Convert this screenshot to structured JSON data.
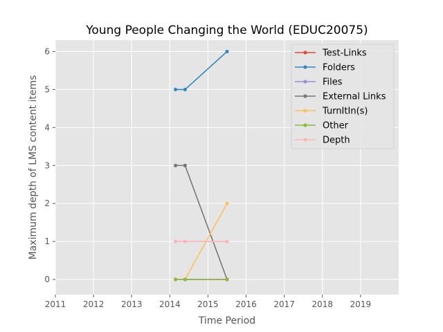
{
  "chart_data": {
    "type": "line",
    "title": "Young People Changing the World (EDUC20075)",
    "xlabel": "Time Period",
    "ylabel": "Maximum depth of LMS content items",
    "xlim": [
      2011,
      2020
    ],
    "ylim": [
      -0.4,
      6.3
    ],
    "xticks": [
      "2011",
      "2012",
      "2013",
      "2014",
      "2015",
      "2016",
      "2017",
      "2018",
      "2019"
    ],
    "yticks": [
      "0",
      "1",
      "2",
      "3",
      "4",
      "5",
      "6"
    ],
    "grid": true,
    "legend_position": "top-right",
    "x": [
      2014.15,
      2014.4,
      2015.5
    ],
    "series": [
      {
        "name": "Test-Links",
        "color": "#e24a33",
        "values": [
          0,
          0,
          0
        ]
      },
      {
        "name": "Folders",
        "color": "#348abd",
        "values": [
          5,
          5,
          6
        ]
      },
      {
        "name": "Files",
        "color": "#988ed5",
        "values": [
          0,
          0,
          0
        ]
      },
      {
        "name": "External Links",
        "color": "#777777",
        "values": [
          3,
          3,
          0
        ]
      },
      {
        "name": "TurnItIn(s)",
        "color": "#fbc15e",
        "values": [
          0,
          0,
          2
        ]
      },
      {
        "name": "Other",
        "color": "#8eba42",
        "values": [
          0,
          0,
          0
        ]
      },
      {
        "name": "Depth",
        "color": "#ffb5b8",
        "values": [
          1,
          1,
          1
        ]
      }
    ]
  }
}
